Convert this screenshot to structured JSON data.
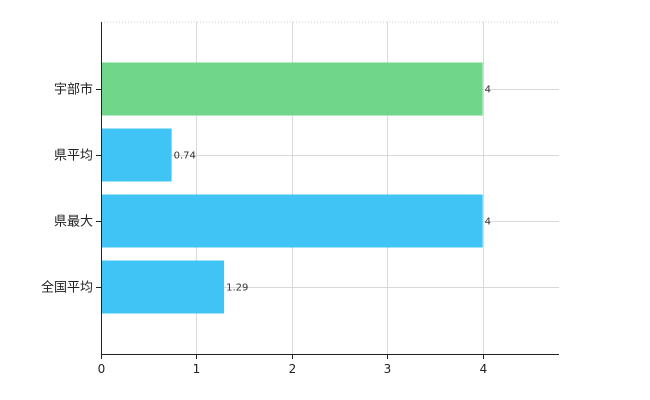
{
  "chart_data": {
    "type": "bar",
    "orientation": "horizontal",
    "categories": [
      "宇部市",
      "県平均",
      "県最大",
      "全国平均"
    ],
    "values": [
      4,
      0.74,
      4,
      1.29
    ],
    "value_labels": [
      "4",
      "0.74",
      "4",
      "1.29"
    ],
    "colors": [
      "#6fd68a",
      "#3fc4f5",
      "#3fc4f5",
      "#3fc4f5"
    ],
    "xlim": [
      0,
      4.8
    ],
    "xticks": [
      0,
      1,
      2,
      3,
      4
    ],
    "xtick_labels": [
      "0",
      "1",
      "2",
      "3",
      "4"
    ],
    "grid": true,
    "legend": "none",
    "title": "",
    "xlabel": "",
    "ylabel": ""
  }
}
